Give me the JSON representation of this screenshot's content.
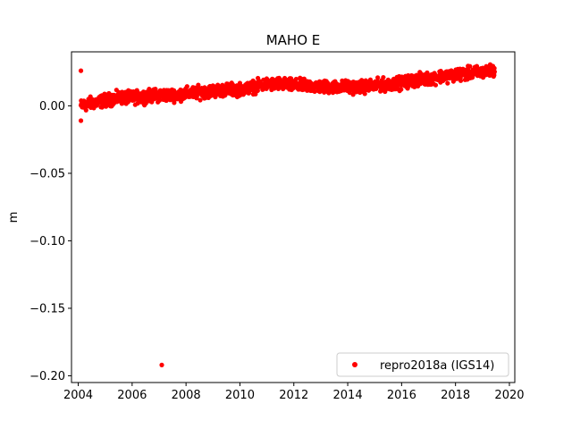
{
  "chart_data": {
    "type": "scatter",
    "title": "MAHO E",
    "xlabel": "",
    "ylabel": "m",
    "xlim": [
      2003.75,
      2020.2
    ],
    "ylim": [
      -0.205,
      0.04
    ],
    "xticks": [
      2004,
      2006,
      2008,
      2010,
      2012,
      2014,
      2016,
      2018,
      2020
    ],
    "xtick_labels": [
      "2004",
      "2006",
      "2008",
      "2010",
      "2012",
      "2014",
      "2016",
      "2018",
      "2020"
    ],
    "yticks": [
      0.0,
      -0.05,
      -0.1,
      -0.15,
      -0.2
    ],
    "ytick_labels": [
      "0.00",
      "−0.05",
      "−0.10",
      "−0.15",
      "−0.20"
    ],
    "grid": false,
    "legend_position": "lower-right",
    "series": [
      {
        "name": "repro2018a (IGS14)",
        "color": "#ff0000",
        "marker": "circle",
        "trend": [
          [
            2004.1,
            0.0
          ],
          [
            2004.5,
            0.002
          ],
          [
            2005.0,
            0.004
          ],
          [
            2005.5,
            0.006
          ],
          [
            2006.0,
            0.006
          ],
          [
            2006.5,
            0.007
          ],
          [
            2007.0,
            0.008
          ],
          [
            2007.5,
            0.008
          ],
          [
            2008.0,
            0.009
          ],
          [
            2008.5,
            0.01
          ],
          [
            2009.0,
            0.011
          ],
          [
            2009.5,
            0.012
          ],
          [
            2010.0,
            0.012
          ],
          [
            2010.5,
            0.014
          ],
          [
            2011.0,
            0.016
          ],
          [
            2011.5,
            0.016
          ],
          [
            2012.0,
            0.015
          ],
          [
            2012.5,
            0.015
          ],
          [
            2013.0,
            0.014
          ],
          [
            2013.5,
            0.014
          ],
          [
            2014.0,
            0.014
          ],
          [
            2014.5,
            0.014
          ],
          [
            2015.0,
            0.015
          ],
          [
            2015.5,
            0.016
          ],
          [
            2016.0,
            0.017
          ],
          [
            2016.5,
            0.019
          ],
          [
            2017.0,
            0.02
          ],
          [
            2017.5,
            0.022
          ],
          [
            2018.0,
            0.023
          ],
          [
            2018.5,
            0.024
          ],
          [
            2019.0,
            0.025
          ],
          [
            2019.45,
            0.026
          ]
        ],
        "outliers": [
          [
            2004.1,
            0.026
          ],
          [
            2004.1,
            -0.011
          ],
          [
            2007.1,
            -0.192
          ]
        ]
      }
    ]
  }
}
